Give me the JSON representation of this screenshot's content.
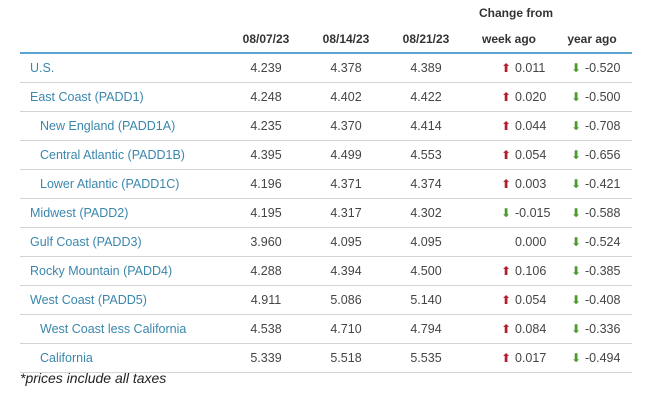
{
  "header": {
    "change_from": "Change from",
    "columns": [
      "",
      "08/07/23",
      "08/14/23",
      "08/21/23",
      "week ago",
      "year ago"
    ]
  },
  "rows": [
    {
      "region": "U.S.",
      "v1": "4.239",
      "v2": "4.378",
      "v3": "4.389",
      "week": "0.011",
      "week_dir": "up",
      "year": "-0.520",
      "year_dir": "down"
    },
    {
      "region": "East Coast (PADD1)",
      "v1": "4.248",
      "v2": "4.402",
      "v3": "4.422",
      "week": "0.020",
      "week_dir": "up",
      "year": "-0.500",
      "year_dir": "down"
    },
    {
      "region": "New England (PADD1A)",
      "v1": "4.235",
      "v2": "4.370",
      "v3": "4.414",
      "week": "0.044",
      "week_dir": "up",
      "year": "-0.708",
      "year_dir": "down"
    },
    {
      "region": "Central Atlantic (PADD1B)",
      "v1": "4.395",
      "v2": "4.499",
      "v3": "4.553",
      "week": "0.054",
      "week_dir": "up",
      "year": "-0.656",
      "year_dir": "down"
    },
    {
      "region": "Lower Atlantic (PADD1C)",
      "v1": "4.196",
      "v2": "4.371",
      "v3": "4.374",
      "week": "0.003",
      "week_dir": "up",
      "year": "-0.421",
      "year_dir": "down"
    },
    {
      "region": "Midwest (PADD2)",
      "v1": "4.195",
      "v2": "4.317",
      "v3": "4.302",
      "week": "-0.015",
      "week_dir": "down",
      "year": "-0.588",
      "year_dir": "down"
    },
    {
      "region": "Gulf Coast (PADD3)",
      "v1": "3.960",
      "v2": "4.095",
      "v3": "4.095",
      "week": "0.000",
      "week_dir": "none",
      "year": "-0.524",
      "year_dir": "down"
    },
    {
      "region": "Rocky Mountain (PADD4)",
      "v1": "4.288",
      "v2": "4.394",
      "v3": "4.500",
      "week": "0.106",
      "week_dir": "up",
      "year": "-0.385",
      "year_dir": "down"
    },
    {
      "region": "West Coast (PADD5)",
      "v1": "4.911",
      "v2": "5.086",
      "v3": "5.140",
      "week": "0.054",
      "week_dir": "up",
      "year": "-0.408",
      "year_dir": "down"
    },
    {
      "region": "West Coast less California",
      "v1": "4.538",
      "v2": "4.710",
      "v3": "4.794",
      "week": "0.084",
      "week_dir": "up",
      "year": "-0.336",
      "year_dir": "down"
    },
    {
      "region": "California",
      "v1": "5.339",
      "v2": "5.518",
      "v3": "5.535",
      "week": "0.017",
      "week_dir": "up",
      "year": "-0.494",
      "year_dir": "down"
    }
  ],
  "footnote": "*prices include all taxes",
  "colors": {
    "accent_rule": "#5ba3d0",
    "link": "#3a87ad",
    "up_arrow": "#b21f2d",
    "down_arrow": "#4a9a2f"
  }
}
